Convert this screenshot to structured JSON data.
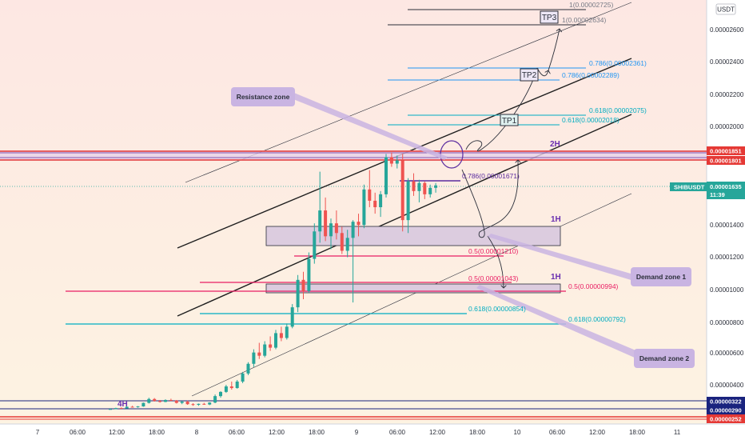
{
  "colors": {
    "bg_top": "#fde7e3",
    "bg_bottom": "#fdf3e2",
    "up": "#26a69a",
    "down": "#ef5350",
    "fib_blue": "#2196f3",
    "fib_cyan": "#00acc1",
    "fib_red": "#e91e63",
    "fib_purple": "#5b2c9f",
    "zone_fill": "#d8c8e0",
    "zone_label_bg": "#c9b4e2",
    "tag_red": "#e53935",
    "tag_navy": "#1a237e",
    "tag_teal": "#26a69a"
  },
  "axis": {
    "currency": "USDT",
    "y_ticks": [
      "0.00002600",
      "0.00002400",
      "0.00002200",
      "0.00002000",
      "0.00001400",
      "0.00001200",
      "0.00001000",
      "0.00000800",
      "0.00000600",
      "0.00000400"
    ],
    "x_ticks": [
      "7",
      "06:00",
      "12:00",
      "18:00",
      "8",
      "06:00",
      "12:00",
      "18:00",
      "9",
      "06:00",
      "12:00",
      "18:00",
      "10",
      "06:00",
      "12:00",
      "18:00",
      "11"
    ]
  },
  "price_tags": {
    "red_top": "0.00001851",
    "red_2": "0.00001801",
    "symbol": "SHIBUSDT",
    "last_price": "0.00001635",
    "countdown": "11:39",
    "navy_1": "0.00000322",
    "navy_2": "0.00000290",
    "red_bottom": "0.00000252"
  },
  "chart_data": {
    "type": "candlestick",
    "symbol": "SHIBUSDT",
    "candles": [
      [
        2.5,
        2.52,
        2.48,
        2.5
      ],
      [
        2.5,
        2.58,
        2.49,
        2.56
      ],
      [
        2.56,
        2.6,
        2.52,
        2.54
      ],
      [
        2.54,
        2.66,
        2.53,
        2.64
      ],
      [
        2.64,
        2.7,
        2.6,
        2.62
      ],
      [
        2.62,
        2.68,
        2.58,
        2.66
      ],
      [
        2.66,
        2.9,
        2.64,
        2.88
      ],
      [
        2.88,
        3.2,
        2.84,
        3.12
      ],
      [
        3.12,
        3.18,
        2.96,
        3.0
      ],
      [
        3.0,
        3.06,
        2.9,
        2.94
      ],
      [
        2.94,
        3.1,
        2.92,
        3.06
      ],
      [
        3.06,
        3.14,
        3.0,
        3.02
      ],
      [
        3.02,
        3.06,
        2.84,
        2.88
      ],
      [
        2.88,
        3.0,
        2.8,
        2.96
      ],
      [
        2.96,
        3.02,
        2.76,
        2.8
      ],
      [
        2.8,
        2.86,
        2.7,
        2.76
      ],
      [
        2.76,
        2.84,
        2.7,
        2.82
      ],
      [
        2.82,
        2.88,
        2.76,
        2.78
      ],
      [
        2.78,
        2.92,
        2.74,
        2.9
      ],
      [
        2.9,
        3.4,
        2.86,
        3.3
      ],
      [
        3.3,
        3.6,
        3.2,
        3.56
      ],
      [
        3.56,
        4.0,
        3.5,
        3.9
      ],
      [
        3.9,
        4.2,
        3.7,
        3.8
      ],
      [
        3.8,
        4.3,
        3.76,
        4.2
      ],
      [
        4.2,
        4.8,
        4.1,
        4.7
      ],
      [
        4.7,
        5.4,
        4.6,
        5.3
      ],
      [
        5.3,
        6.2,
        5.1,
        6.0
      ],
      [
        6.0,
        6.6,
        5.6,
        5.8
      ],
      [
        5.8,
        6.7,
        5.7,
        6.5
      ],
      [
        6.5,
        7.0,
        6.1,
        6.3
      ],
      [
        6.3,
        7.4,
        6.2,
        7.2
      ],
      [
        7.2,
        7.6,
        6.7,
        6.9
      ],
      [
        6.9,
        7.8,
        6.8,
        7.6
      ],
      [
        7.6,
        9.0,
        7.5,
        8.8
      ],
      [
        8.8,
        10.8,
        8.5,
        10.5
      ],
      [
        10.5,
        11.0,
        9.3,
        9.8
      ],
      [
        9.8,
        12.2,
        9.7,
        11.8
      ],
      [
        11.8,
        14.0,
        11.5,
        13.5
      ],
      [
        13.5,
        17.2,
        12.8,
        14.8
      ],
      [
        14.8,
        15.6,
        12.9,
        13.2
      ],
      [
        13.2,
        14.3,
        12.4,
        14.0
      ],
      [
        14.0,
        14.8,
        13.0,
        13.4
      ],
      [
        13.4,
        13.8,
        12.1,
        12.3
      ],
      [
        12.3,
        13.6,
        11.9,
        13.1
      ],
      [
        13.1,
        14.2,
        9.1,
        14.1
      ],
      [
        14.1,
        14.6,
        13.2,
        13.9
      ],
      [
        13.9,
        16.4,
        13.7,
        16.1
      ],
      [
        16.1,
        17.3,
        15.0,
        15.4
      ],
      [
        15.4,
        15.9,
        14.6,
        15.0
      ],
      [
        15.0,
        16.0,
        14.4,
        15.8
      ],
      [
        15.8,
        18.3,
        15.6,
        18.1
      ],
      [
        18.1,
        18.4,
        17.5,
        17.7
      ],
      [
        17.7,
        18.2,
        17.4,
        17.9
      ],
      [
        17.9,
        18.3,
        13.5,
        14.2
      ],
      [
        14.2,
        16.8,
        13.4,
        16.6
      ],
      [
        16.6,
        17.1,
        15.7,
        16.0
      ],
      [
        16.0,
        16.7,
        15.3,
        16.5
      ],
      [
        16.5,
        16.6,
        15.5,
        15.8
      ],
      [
        15.8,
        16.4,
        15.6,
        16.2
      ],
      [
        16.2,
        16.5,
        15.9,
        16.35
      ]
    ],
    "fib_labels": [
      "1(0.00002725)",
      "1(0.00002634)",
      "0.786(0.00002361)",
      "0.786(0.00002289)",
      "0.618(0.00002075)",
      "0.618(0.00002018)",
      "0.786(0.00001671)",
      "0.5(0.00001210)",
      "0.5(0.00001043)",
      "0.5(0.00000994)",
      "0.618(0.00000854)",
      "0.618(0.00000792)"
    ],
    "targets": [
      "TP3",
      "TP2",
      "TP1"
    ],
    "zone_labels": [
      "Resistance zone",
      "Demand zone 1",
      "Demand zone 2"
    ],
    "timeframes": [
      "2H",
      "1H",
      "1H",
      "4H"
    ]
  }
}
